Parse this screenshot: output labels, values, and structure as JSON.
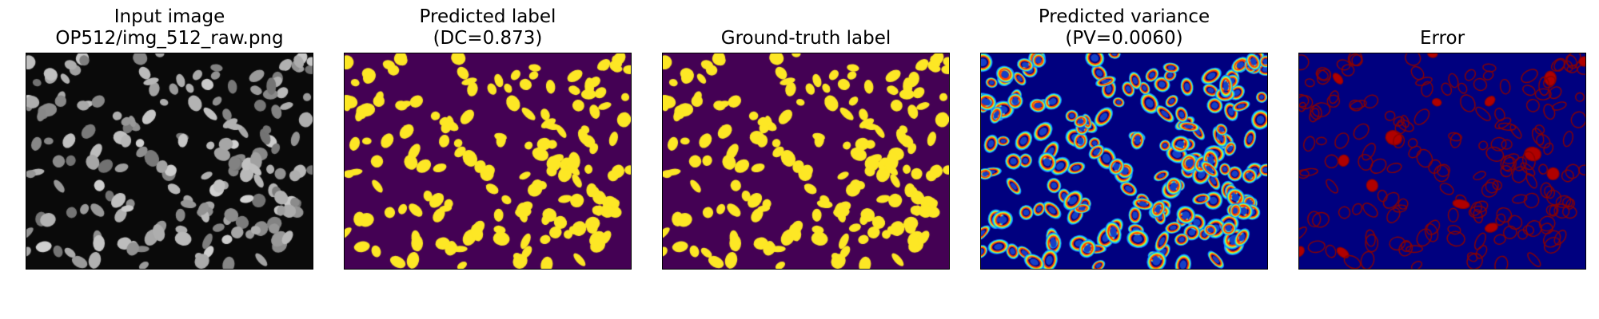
{
  "panels": [
    {
      "id": "input",
      "title_lines": [
        "Input image",
        "OP512/img_512_raw.png"
      ],
      "colormap": "gray"
    },
    {
      "id": "pred",
      "title_lines": [
        "Predicted label",
        "(DC=0.873)"
      ],
      "colormap": "viridis-binary"
    },
    {
      "id": "gt",
      "title_lines": [
        "",
        "Ground-truth label"
      ],
      "colormap": "viridis-binary"
    },
    {
      "id": "var",
      "title_lines": [
        "Predicted variance",
        "(PV=0.0060)"
      ],
      "colormap": "jet"
    },
    {
      "id": "err",
      "title_lines": [
        "",
        "Error"
      ],
      "colormap": "jet-dark"
    }
  ],
  "colors": {
    "viridis_background": "#440154",
    "viridis_foreground": "#fde725",
    "jet_background": "#00007f",
    "error_mark": "#8b0000"
  }
}
